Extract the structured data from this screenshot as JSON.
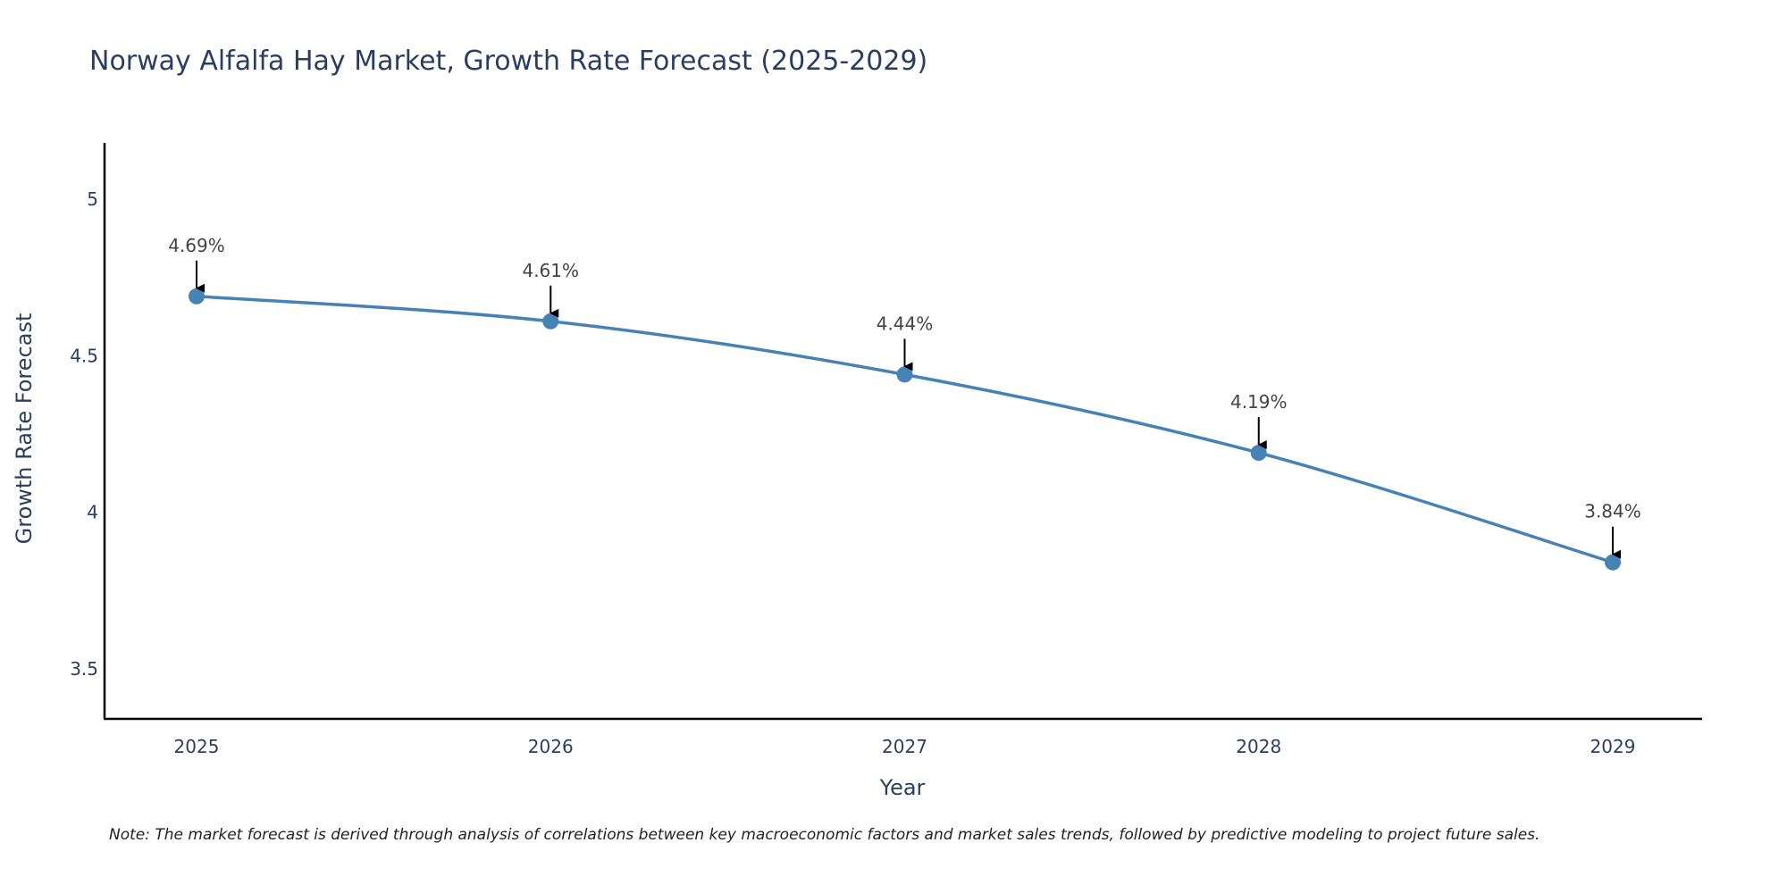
{
  "chart_data": {
    "type": "line",
    "title": "Norway Alfalfa Hay Market, Growth Rate Forecast (2025-2029)",
    "xlabel": "Year",
    "ylabel": "Growth Rate Forecast",
    "categories": [
      "2025",
      "2026",
      "2027",
      "2028",
      "2029"
    ],
    "series": [
      {
        "name": "Growth Rate Forecast",
        "values": [
          4.69,
          4.61,
          4.44,
          4.19,
          3.84
        ]
      }
    ],
    "data_labels": [
      "4.69%",
      "4.61%",
      "4.44%",
      "4.19%",
      "3.84%"
    ],
    "ylim": [
      3.34,
      5.18
    ],
    "yticks": [
      3.5,
      4,
      4.5,
      5
    ],
    "ytick_labels": [
      "3.5",
      "4",
      "4.5",
      "5"
    ],
    "grid": false,
    "note": "Note: The market forecast is derived through analysis of correlations between key macroeconomic factors and market sales trends, followed by predictive modeling to project future sales.",
    "colors": {
      "line": "#4682b4",
      "marker": "#4682b4",
      "axis": "#000000",
      "text": "#2a3f5f",
      "annotation_text": "#444444",
      "arrow": "#000000"
    }
  }
}
